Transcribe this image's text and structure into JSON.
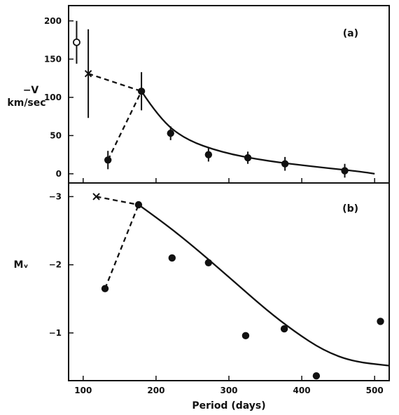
{
  "chart_data": [
    {
      "panel_label": "(a)",
      "type": "scatter",
      "ylabel_line1": "−V",
      "ylabel_line2": "km/sec",
      "xlim": [
        80,
        520
      ],
      "ylim": [
        -12,
        220
      ],
      "yticks": [
        0,
        50,
        100,
        150,
        200
      ],
      "grid": false,
      "series": [
        {
          "marker": "filled-circle",
          "points": [
            {
              "x": 134,
              "y": 18,
              "err": 12
            },
            {
              "x": 180,
              "y": 108,
              "err": 25
            },
            {
              "x": 220,
              "y": 53,
              "err": 9
            },
            {
              "x": 272,
              "y": 25,
              "err": 9
            },
            {
              "x": 326,
              "y": 21,
              "err": 8
            },
            {
              "x": 377,
              "y": 13,
              "err": 9
            },
            {
              "x": 459,
              "y": 4,
              "err": 9
            }
          ]
        },
        {
          "marker": "open-circle",
          "points": [
            {
              "x": 91,
              "y": 172,
              "err": 28
            }
          ]
        },
        {
          "marker": "cross",
          "points": [
            {
              "x": 107,
              "y": 131,
              "err": 58
            }
          ]
        }
      ],
      "solid_curve": [
        [
          180,
          108
        ],
        [
          205,
          72
        ],
        [
          240,
          45
        ],
        [
          290,
          28
        ],
        [
          350,
          17
        ],
        [
          420,
          9
        ],
        [
          480,
          3
        ],
        [
          500,
          0
        ]
      ],
      "dashed_curves": [
        [
          [
            134,
            18
          ],
          [
            180,
            108
          ]
        ],
        [
          [
            107,
            131
          ],
          [
            180,
            108
          ]
        ]
      ]
    },
    {
      "panel_label": "(b)",
      "type": "scatter",
      "ylabel": "Mᵥ",
      "xlabel": "Period (days)",
      "xlim": [
        80,
        520
      ],
      "ylim": [
        -0.3,
        -3.2
      ],
      "yticks": [
        -1,
        -2,
        -3
      ],
      "ytick_labels": [
        "−1",
        "−2",
        "−3"
      ],
      "xticks": [
        100,
        200,
        300,
        400,
        500
      ],
      "grid": false,
      "series": [
        {
          "marker": "filled-circle",
          "points": [
            {
              "x": 130,
              "y": -1.65
            },
            {
              "x": 176,
              "y": -2.88
            },
            {
              "x": 222,
              "y": -2.1
            },
            {
              "x": 272,
              "y": -2.03
            },
            {
              "x": 323,
              "y": -0.96
            },
            {
              "x": 376,
              "y": -1.06
            },
            {
              "x": 420,
              "y": -0.37
            },
            {
              "x": 508,
              "y": -1.17
            }
          ]
        },
        {
          "marker": "cross",
          "points": [
            {
              "x": 118,
              "y": -3.0
            }
          ]
        }
      ],
      "solid_curve": [
        [
          176,
          -2.88
        ],
        [
          210,
          -2.62
        ],
        [
          250,
          -2.28
        ],
        [
          300,
          -1.82
        ],
        [
          350,
          -1.35
        ],
        [
          390,
          -1.02
        ],
        [
          430,
          -0.74
        ],
        [
          470,
          -0.58
        ],
        [
          520,
          -0.52
        ]
      ],
      "dashed_curves": [
        [
          [
            130,
            -1.65
          ],
          [
            176,
            -2.88
          ]
        ],
        [
          [
            118,
            -3.0
          ],
          [
            176,
            -2.88
          ]
        ]
      ]
    }
  ]
}
